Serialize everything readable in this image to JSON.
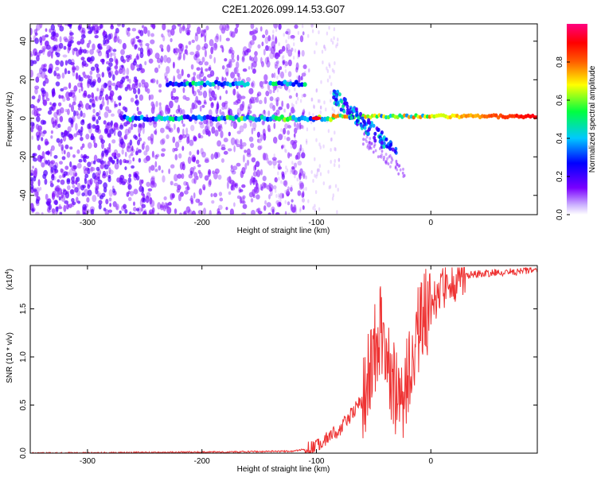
{
  "title": "C2E1.2026.099.14.53.G07",
  "chart_data": [
    {
      "type": "heatmap",
      "title": "C2E1.2026.099.14.53.G07",
      "xlabel": "Height of straight line (km)",
      "ylabel": "Frequency (Hz)",
      "xlim": [
        -350,
        93
      ],
      "ylim": [
        -50,
        49
      ],
      "xticks": [
        -300,
        -200,
        -100,
        0
      ],
      "yticks": [
        -40,
        -20,
        0,
        20,
        40
      ],
      "colorbar": {
        "label": "Normalized spectral amplitude",
        "range": [
          0,
          1
        ],
        "ticks": [
          "0.0",
          "0.2",
          "0.4",
          "0.6",
          "0.8"
        ],
        "colormap": [
          "#ffffff",
          "#7a00ff",
          "#0000ff",
          "#00c8ff",
          "#00ff40",
          "#ffff00",
          "#ff6000",
          "#ff0000",
          "#ff0080"
        ]
      },
      "features": [
        {
          "name": "main tone",
          "x": [
            -270,
            93
          ],
          "frequency_hz": 0
        },
        {
          "name": "upper tone",
          "x": [
            -230,
            -110
          ],
          "frequency_hz": 18
        },
        {
          "name": "noise region",
          "x": [
            -350,
            -110
          ],
          "frequency_hz": [
            -50,
            49
          ]
        }
      ]
    },
    {
      "type": "line",
      "xlabel": "Height of straight line (km)",
      "ylabel": "SNR (10 * v/v)",
      "y_multiplier": "(x10",
      "y_multiplier_exp": "4",
      "xlim": [
        -350,
        93
      ],
      "ylim": [
        0,
        1.95
      ],
      "xticks": [
        -300,
        -200,
        -100,
        0
      ],
      "yticks": [
        "0.0",
        "0.5",
        "1.0",
        "1.5"
      ],
      "color": "#ee3333",
      "profile_points": [
        {
          "x": -350,
          "y": 0.0
        },
        {
          "x": -200,
          "y": 0.01
        },
        {
          "x": -120,
          "y": 0.02
        },
        {
          "x": -100,
          "y": 0.06
        },
        {
          "x": -80,
          "y": 0.25
        },
        {
          "x": -60,
          "y": 0.55
        },
        {
          "x": -50,
          "y": 1.0
        },
        {
          "x": -45,
          "y": 1.3
        },
        {
          "x": -35,
          "y": 0.75
        },
        {
          "x": -25,
          "y": 0.55
        },
        {
          "x": -15,
          "y": 1.1
        },
        {
          "x": -5,
          "y": 1.45
        },
        {
          "x": 10,
          "y": 1.7
        },
        {
          "x": 30,
          "y": 1.85
        },
        {
          "x": 60,
          "y": 1.88
        },
        {
          "x": 93,
          "y": 1.9
        }
      ]
    }
  ]
}
